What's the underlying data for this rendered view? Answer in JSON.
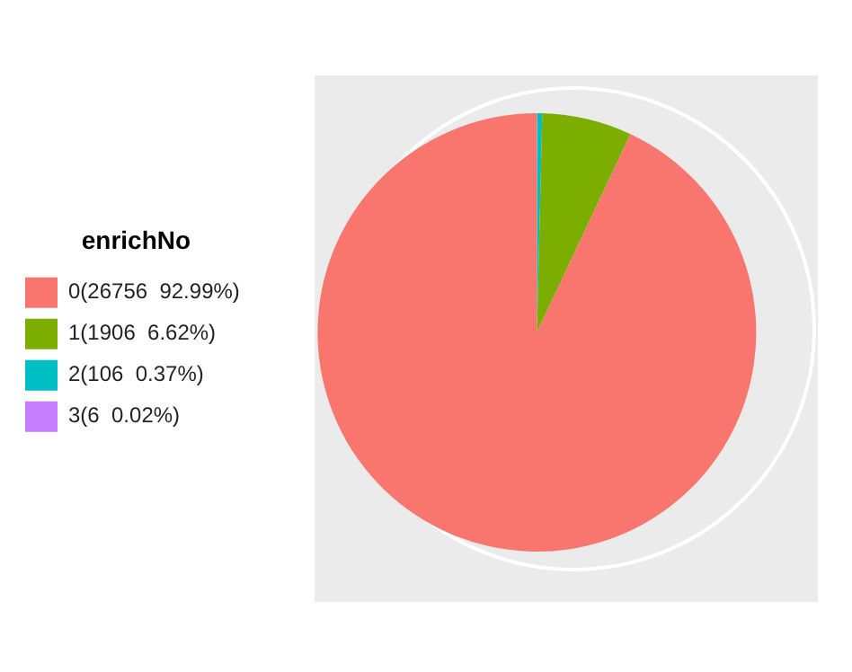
{
  "chart_data": {
    "type": "pie",
    "legend_title": "enrichNo",
    "legend": "left",
    "categories": [
      "0(26756  92.99%)",
      "1(1906  6.62%)",
      "2(106  0.37%)",
      "3(6  0.02%)"
    ],
    "values": [
      26756,
      1906,
      106,
      6
    ],
    "colors": [
      "#f8766d",
      "#7cae00",
      "#00bfc4",
      "#c77cff"
    ]
  }
}
